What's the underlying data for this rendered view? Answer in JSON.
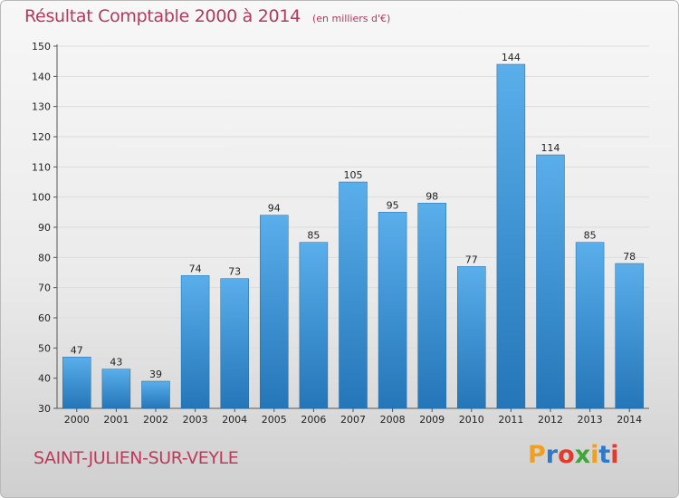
{
  "header": {
    "title": "Résultat Comptable 2000 à 2014",
    "subtitle": "(en milliers d'€)"
  },
  "footer": {
    "commune": "SAINT-JULIEN-SUR-VEYLE",
    "brand": [
      "P",
      "r",
      "o",
      "x",
      "i",
      "t",
      "i"
    ],
    "brand_colors": [
      "#f0a020",
      "#2c7ac9",
      "#e23b2e",
      "#43a33c",
      "#f0a020",
      "#2c7ac9",
      "#e23b2e"
    ]
  },
  "colors": {
    "bar_top": "#5aaeea",
    "bar_bottom": "#2476b8",
    "title": "#b23a5a",
    "grid": "#dcdcdc"
  },
  "chart_data": {
    "type": "bar",
    "title": "Résultat Comptable 2000 à 2014",
    "subtitle": "(en milliers d'€)",
    "xlabel": "",
    "ylabel": "",
    "categories": [
      "2000",
      "2001",
      "2002",
      "2003",
      "2004",
      "2005",
      "2006",
      "2007",
      "2008",
      "2009",
      "2010",
      "2011",
      "2012",
      "2013",
      "2014"
    ],
    "values": [
      47,
      43,
      39,
      74,
      73,
      94,
      85,
      105,
      95,
      98,
      77,
      144,
      114,
      85,
      78
    ],
    "ylim": [
      30,
      150
    ],
    "yticks": [
      30,
      40,
      50,
      60,
      70,
      80,
      90,
      100,
      110,
      120,
      130,
      140,
      150
    ],
    "grid": true
  }
}
